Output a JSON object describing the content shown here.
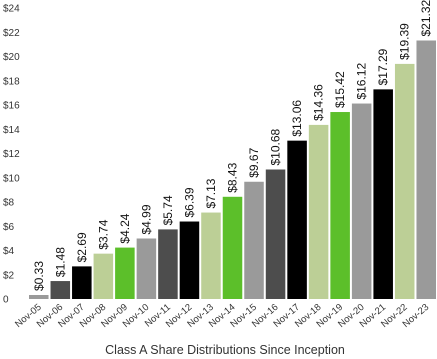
{
  "chart_data": {
    "type": "bar",
    "title": "Class A Share Distributions Since Inception",
    "xlabel": "",
    "ylabel": "",
    "ylim": [
      0,
      24
    ],
    "y_ticks": [
      "0",
      "$2",
      "$4",
      "$6",
      "$8",
      "$10",
      "$12",
      "$14",
      "$16",
      "$18",
      "$20",
      "$22",
      "$24"
    ],
    "y_tick_values": [
      0,
      2,
      4,
      6,
      8,
      10,
      12,
      14,
      16,
      18,
      20,
      22,
      24
    ],
    "grid": false,
    "legend": "none",
    "categories": [
      "Nov-05",
      "Nov-06",
      "Nov-07",
      "Nov-08",
      "Nov-09",
      "Nov-10",
      "Nov-11",
      "Nov-12",
      "Nov-13",
      "Nov-14",
      "Nov-15",
      "Nov-16",
      "Nov-17",
      "Nov-18",
      "Nov-19",
      "Nov-20",
      "Nov-21",
      "Nov-22",
      "Nov-23"
    ],
    "values": [
      0.33,
      1.48,
      2.69,
      3.74,
      4.24,
      4.99,
      5.74,
      6.39,
      7.13,
      8.43,
      9.67,
      10.68,
      13.06,
      14.36,
      15.42,
      16.12,
      17.29,
      19.39,
      21.32
    ],
    "data_labels": [
      "$0.33",
      "$1.48",
      "$2.69",
      "$3.74",
      "$4.24",
      "$4.99",
      "$5.74",
      "$6.39",
      "$7.13",
      "$8.43",
      "$9.67",
      "$10.68",
      "$13.06",
      "$14.36",
      "$15.42",
      "$16.12",
      "$17.29",
      "$19.39",
      "$21.32"
    ],
    "bar_colors": [
      "#9a9a9a",
      "#4d4d4d",
      "#000000",
      "#bccf96",
      "#5cbf2a",
      "#9a9a9a",
      "#4d4d4d",
      "#000000",
      "#bccf96",
      "#5cbf2a",
      "#9a9a9a",
      "#4d4d4d",
      "#000000",
      "#bccf96",
      "#5cbf2a",
      "#9a9a9a",
      "#000000",
      "#bccf96",
      "#9a9a9a"
    ]
  }
}
